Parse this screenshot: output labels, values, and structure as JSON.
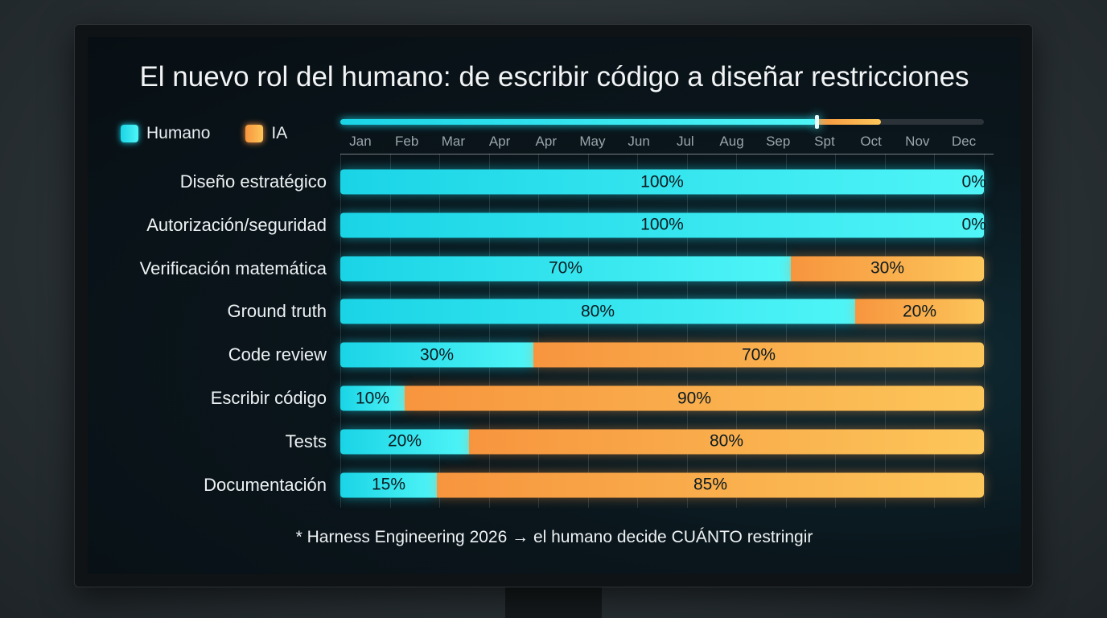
{
  "colors": {
    "humano": "#1ad4e6",
    "humano_light": "#4ff5f7",
    "ia": "#f7953e",
    "ia_light": "#fcc65a"
  },
  "chart_data": {
    "type": "bar",
    "stacked": true,
    "orientation": "horizontal",
    "title": "El nuevo rol del humano: de escribir código a diseñar restricciones",
    "legend": {
      "placement": "top-left",
      "entries": [
        "Humano",
        "IA"
      ]
    },
    "timeline": {
      "months": [
        "Jan",
        "Feb",
        "Mar",
        "Apr",
        "Apr",
        "May",
        "Jun",
        "Jul",
        "Aug",
        "Sep",
        "Spt",
        "Oct",
        "Nov",
        "Dec"
      ],
      "humano_progress_pct": 74,
      "ia_progress_pct": 84
    },
    "categories": [
      "Diseño estratégico",
      "Autorización/seguridad",
      "Verificación matemática",
      "Ground truth",
      "Code review",
      "Escribir código",
      "Tests",
      "Documentación"
    ],
    "series": [
      {
        "name": "Humano",
        "values": [
          100,
          100,
          70,
          80,
          30,
          10,
          20,
          15
        ]
      },
      {
        "name": "IA",
        "values": [
          0,
          0,
          30,
          20,
          70,
          90,
          80,
          85
        ]
      }
    ],
    "xlim": [
      0,
      100
    ],
    "grid": true,
    "footnote": "* Harness Engineering 2026 → el humano decide CUÁNTO restringir"
  }
}
